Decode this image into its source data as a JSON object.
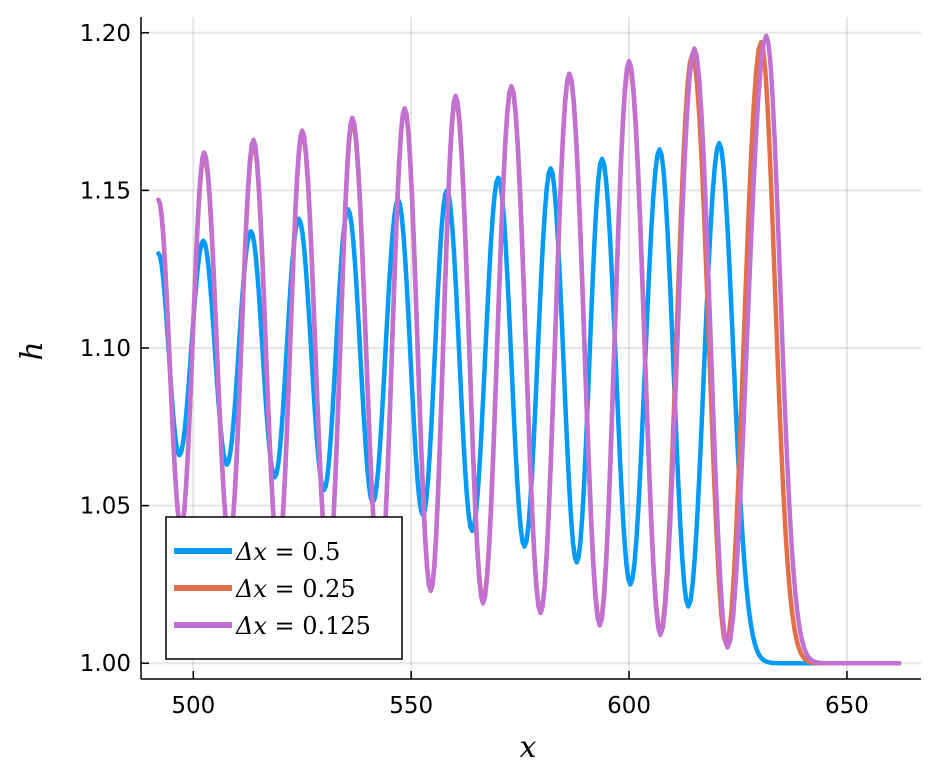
{
  "chart_data": {
    "type": "line",
    "title": "",
    "xlabel": "x",
    "ylabel": "h",
    "xlim": [
      488,
      667
    ],
    "ylim": [
      0.995,
      1.205
    ],
    "xticks": [
      500,
      550,
      600,
      650
    ],
    "xtick_labels": [
      "500",
      "550",
      "600",
      "650"
    ],
    "yticks": [
      1.0,
      1.05,
      1.1,
      1.15,
      1.2
    ],
    "ytick_labels": [
      "1.00",
      "1.05",
      "1.10",
      "1.15",
      "1.20"
    ],
    "grid": true,
    "legend_position": "bottom-left",
    "series": [
      {
        "name": "Δx = 0.5",
        "label_var": "Δx",
        "label_value": "0.5",
        "color": "#009AF9",
        "start": {
          "x": 492,
          "h": 1.13
        },
        "front_min": 1.0,
        "end_x": 662,
        "peaks": [
          [
            502.3,
            1.134
          ],
          [
            513.2,
            1.137
          ],
          [
            524.2,
            1.141
          ],
          [
            535.5,
            1.144
          ],
          [
            547.0,
            1.147
          ],
          [
            558.2,
            1.15
          ],
          [
            570.0,
            1.154
          ],
          [
            582.0,
            1.157
          ],
          [
            593.8,
            1.16
          ],
          [
            607.0,
            1.163
          ],
          [
            620.7,
            1.165
          ]
        ],
        "troughs": [
          [
            496.8,
            1.066
          ],
          [
            507.7,
            1.063
          ],
          [
            518.7,
            1.059
          ],
          [
            530.0,
            1.055
          ],
          [
            541.2,
            1.051
          ],
          [
            552.7,
            1.047
          ],
          [
            564.0,
            1.042
          ],
          [
            576.0,
            1.037
          ],
          [
            588.0,
            1.032
          ],
          [
            600.3,
            1.025
          ],
          [
            613.6,
            1.018
          ]
        ]
      },
      {
        "name": "Δx = 0.25",
        "label_var": "Δx",
        "label_value": "0.25",
        "color": "#E26F46",
        "start": {
          "x": 492,
          "h": 1.147
        },
        "front_min": 1.0,
        "end_x": 662,
        "peaks": [
          [
            502.5,
            1.161
          ],
          [
            513.8,
            1.165
          ],
          [
            525.0,
            1.168
          ],
          [
            536.5,
            1.172
          ],
          [
            548.5,
            1.176
          ],
          [
            560.2,
            1.179
          ],
          [
            573.0,
            1.183
          ],
          [
            586.3,
            1.187
          ],
          [
            600.0,
            1.19
          ],
          [
            614.5,
            1.193
          ],
          [
            630.3,
            1.197
          ]
        ],
        "troughs": [
          [
            497.2,
            1.043
          ],
          [
            508.3,
            1.039
          ],
          [
            519.5,
            1.035
          ],
          [
            531.0,
            1.031
          ],
          [
            542.8,
            1.027
          ],
          [
            554.5,
            1.023
          ],
          [
            566.5,
            1.02
          ],
          [
            579.7,
            1.016
          ],
          [
            593.3,
            1.013
          ],
          [
            607.2,
            1.01
          ],
          [
            622.3,
            1.006
          ]
        ]
      },
      {
        "name": "Δx = 0.125",
        "label_var": "Δx",
        "label_value": "0.125",
        "color": "#C271D2",
        "start": {
          "x": 492,
          "h": 1.147
        },
        "front_min": 1.0,
        "end_x": 662,
        "peaks": [
          [
            502.5,
            1.162
          ],
          [
            513.8,
            1.166
          ],
          [
            525.0,
            1.169
          ],
          [
            536.5,
            1.173
          ],
          [
            548.5,
            1.176
          ],
          [
            560.2,
            1.18
          ],
          [
            573.0,
            1.183
          ],
          [
            586.3,
            1.187
          ],
          [
            600.0,
            1.191
          ],
          [
            615.0,
            1.195
          ],
          [
            631.5,
            1.199
          ]
        ],
        "troughs": [
          [
            497.2,
            1.043
          ],
          [
            508.3,
            1.039
          ],
          [
            519.5,
            1.035
          ],
          [
            531.0,
            1.031
          ],
          [
            542.8,
            1.027
          ],
          [
            554.5,
            1.023
          ],
          [
            566.5,
            1.019
          ],
          [
            579.7,
            1.016
          ],
          [
            593.3,
            1.012
          ],
          [
            607.2,
            1.009
          ],
          [
            622.6,
            1.005
          ]
        ]
      }
    ]
  }
}
